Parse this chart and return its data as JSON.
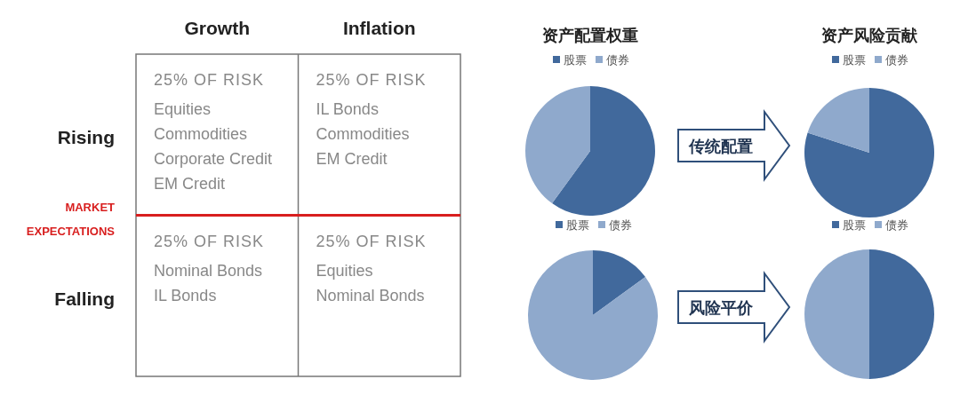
{
  "chart_data": [
    {
      "type": "other",
      "categories": [
        "Growth",
        "Inflation"
      ],
      "y_categories": [
        "Rising",
        "Falling"
      ],
      "cell_labels": [
        [
          "25% OF RISK\nEquities\nCommodities\nCorporate Credit\nEM Credit",
          "25% OF RISK\nIL Bonds\nCommodities\nEM Credit"
        ],
        [
          "25% OF RISK\nNominal Bonds\nIL Bonds",
          "25% OF RISK\nEquities\nNominal Bonds"
        ]
      ],
      "annotations": [
        "MARKET EXPECTATIONS"
      ]
    },
    {
      "type": "pie",
      "title": "资产配置权重",
      "categories": [
        "股票",
        "债券"
      ],
      "values": [
        60,
        40
      ],
      "colors": [
        "#41699c",
        "#8fa9cc"
      ],
      "legend": "top"
    },
    {
      "type": "pie",
      "title": "资产风险贡献",
      "categories": [
        "股票",
        "债券"
      ],
      "values": [
        80,
        20
      ],
      "colors": [
        "#41699c",
        "#8fa9cc"
      ],
      "legend": "top",
      "annotations": [
        "传统配置"
      ]
    },
    {
      "type": "pie",
      "categories": [
        "股票",
        "债券"
      ],
      "values": [
        15,
        85
      ],
      "colors": [
        "#41699c",
        "#8fa9cc"
      ],
      "legend": "top"
    },
    {
      "type": "pie",
      "categories": [
        "股票",
        "债券"
      ],
      "values": [
        50,
        50
      ],
      "colors": [
        "#41699c",
        "#8fa9cc"
      ],
      "legend": "top",
      "annotations": [
        "风险平价"
      ]
    }
  ]
}
